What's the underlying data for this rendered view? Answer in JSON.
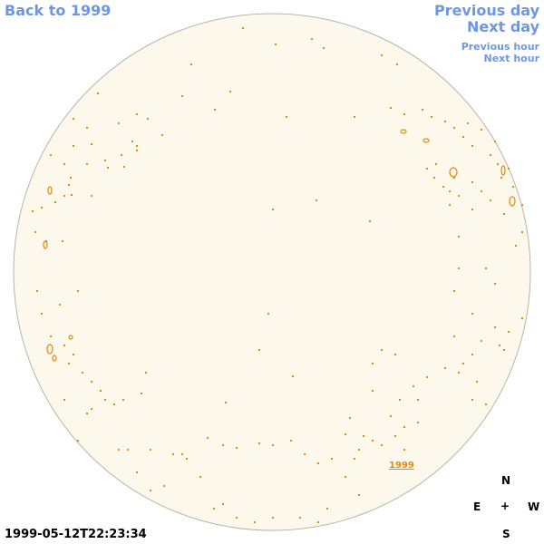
{
  "nav": {
    "back": "Back to 1999",
    "previous_day": "Previous day",
    "next_day": "Next day",
    "previous_hour": "Previous hour",
    "next_hour": "Next hour"
  },
  "map_link": "1999",
  "compass": {
    "north": "N",
    "east": "E",
    "center": "+",
    "west": "W",
    "south": "S"
  },
  "timestamp": "1999-05-12T22:23:34",
  "colors": {
    "disk_fill": "#fdf8ec",
    "disk_edge": "#b9b4a8",
    "feature": "#e5890b",
    "link": "#6f96e0"
  }
}
